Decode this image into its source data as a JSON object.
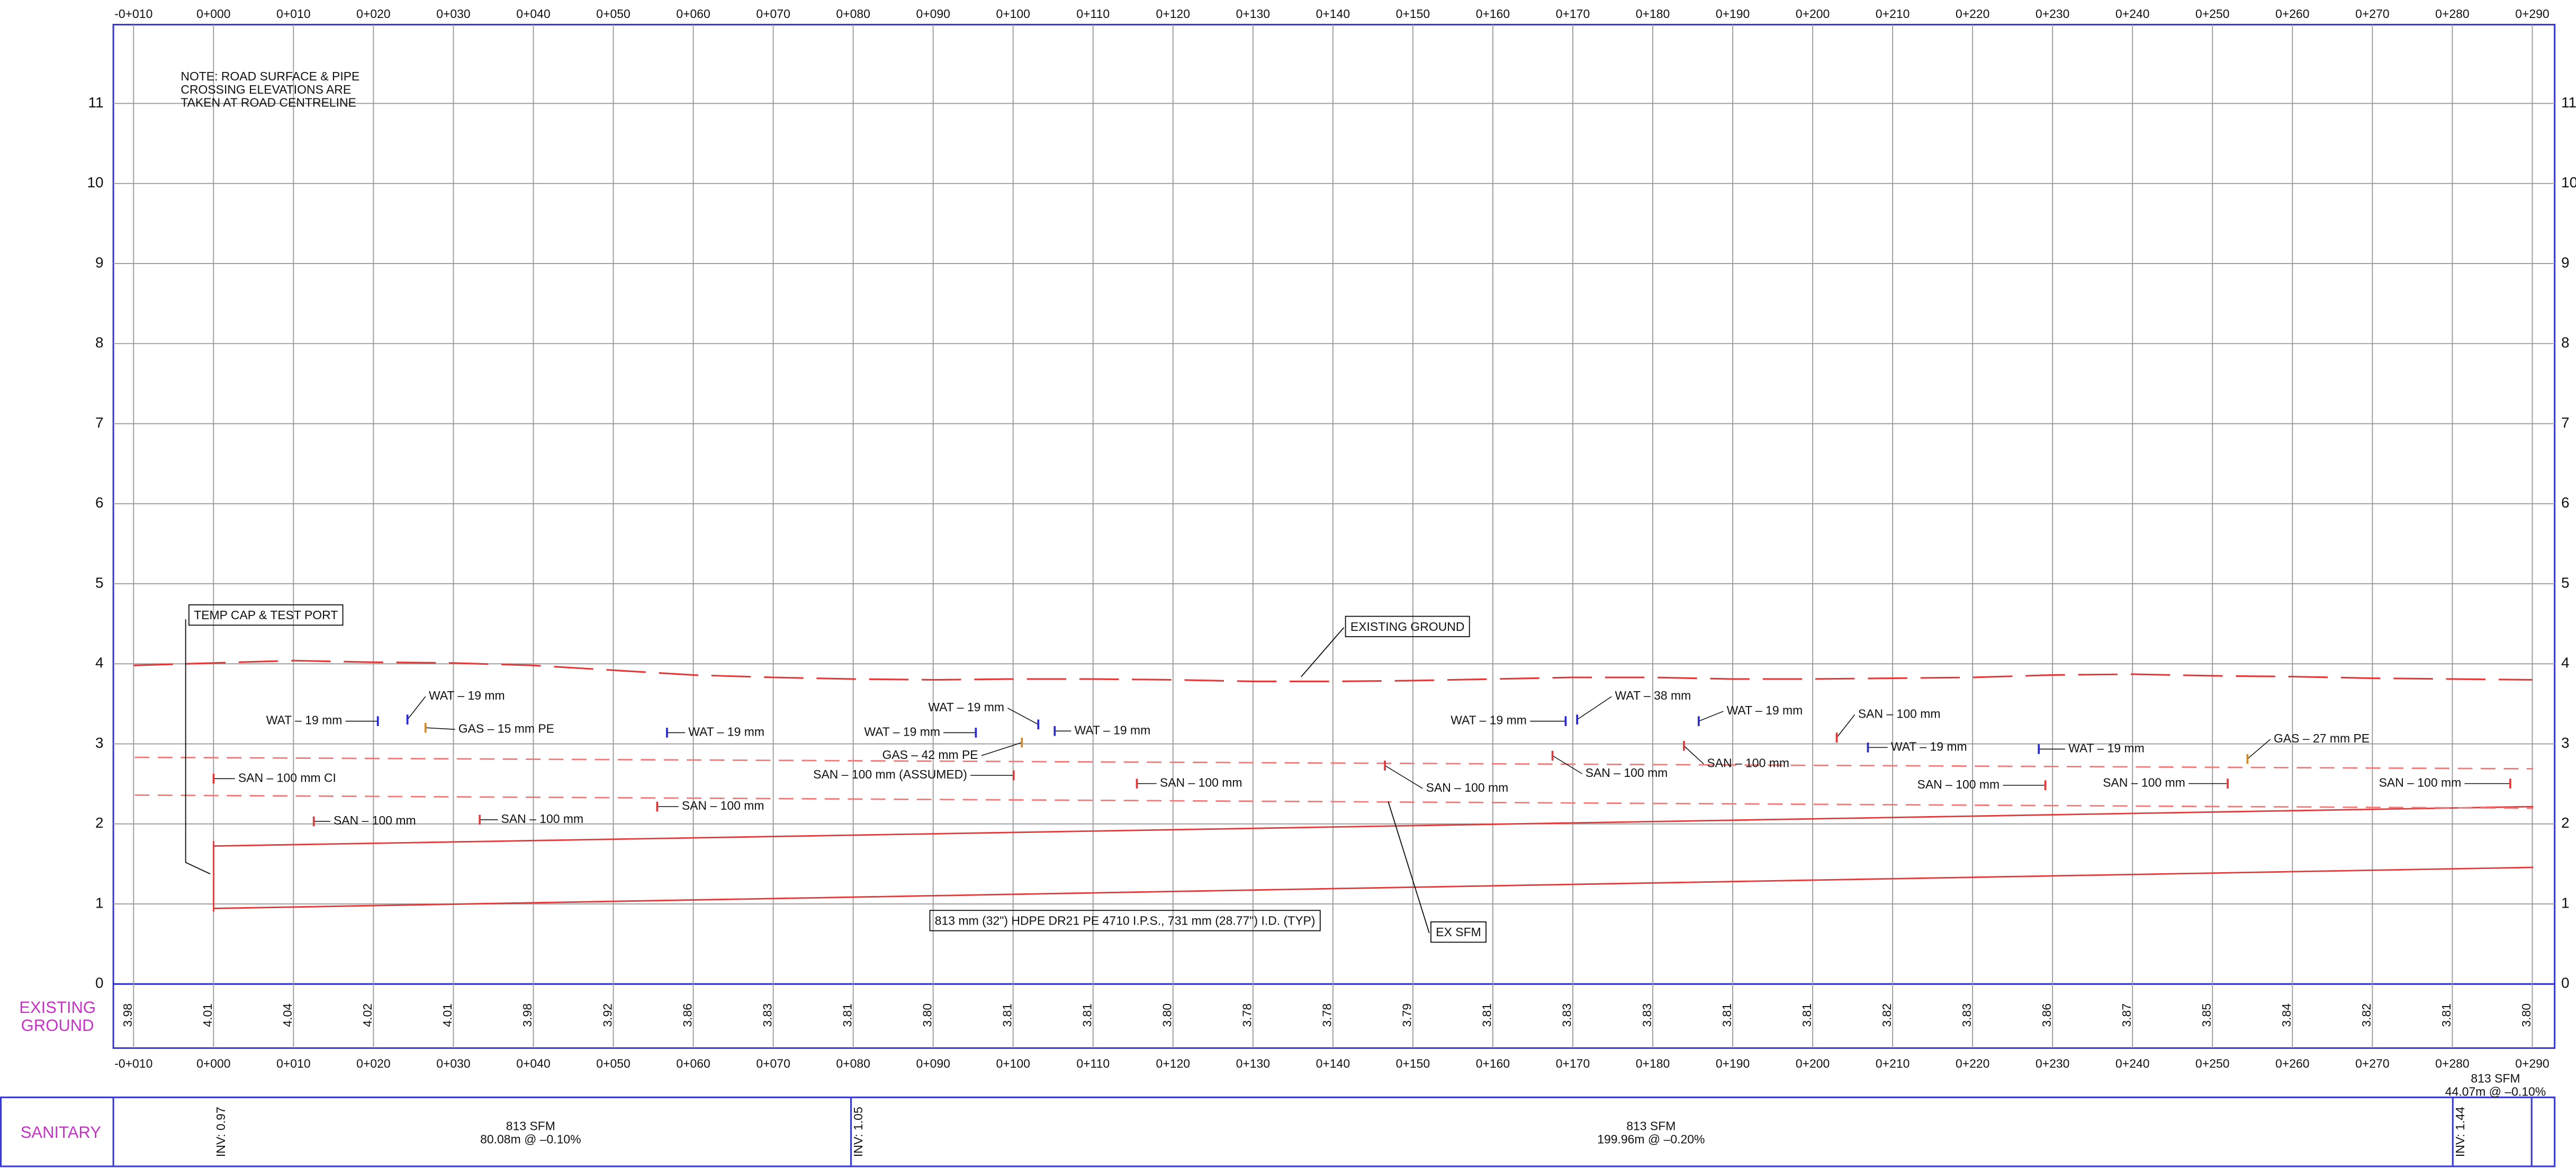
{
  "stations": [
    "-0+010",
    "0+000",
    "0+010",
    "0+020",
    "0+030",
    "0+040",
    "0+050",
    "0+060",
    "0+070",
    "0+080",
    "0+090",
    "0+100",
    "0+110",
    "0+120",
    "0+130",
    "0+140",
    "0+150",
    "0+160",
    "0+170",
    "0+180",
    "0+190",
    "0+200",
    "0+210",
    "0+220",
    "0+230",
    "0+240",
    "0+250",
    "0+260",
    "0+270",
    "0+280",
    "0+290"
  ],
  "elevations": [
    0,
    1,
    2,
    3,
    4,
    5,
    6,
    7,
    8,
    9,
    10,
    11
  ],
  "existing_ground": {
    "label_lines": [
      "EXISTING",
      "GROUND"
    ],
    "values": [
      3.98,
      4.01,
      4.04,
      4.02,
      4.01,
      3.98,
      3.92,
      3.86,
      3.83,
      3.81,
      3.8,
      3.81,
      3.81,
      3.8,
      3.78,
      3.78,
      3.79,
      3.81,
      3.83,
      3.83,
      3.81,
      3.81,
      3.82,
      3.83,
      3.86,
      3.87,
      3.85,
      3.84,
      3.82,
      3.81,
      3.8
    ],
    "value_labels": [
      "3.98",
      "4.01",
      "4.04",
      "4.02",
      "4.01",
      "3.98",
      "3.92",
      "3.86",
      "3.83",
      "3.81",
      "3.80",
      "3.81",
      "3.81",
      "3.80",
      "3.78",
      "3.78",
      "3.79",
      "3.81",
      "3.83",
      "3.83",
      "3.81",
      "3.81",
      "3.82",
      "3.83",
      "3.86",
      "3.87",
      "3.85",
      "3.84",
      "3.82",
      "3.81",
      "3.80"
    ]
  },
  "notes": [
    "NOTE: ROAD SURFACE & PIPE",
    "CROSSING ELEVATIONS ARE",
    "TAKEN AT ROAD CENTRELINE"
  ],
  "callouts": [
    "TEMP CAP & TEST PORT",
    "EXISTING GROUND",
    "813 mm (32\") HDPE DR21 PE 4710 I.P.S., 731 mm (28.77\") I.D. (TYP)",
    "EX SFM"
  ],
  "utilities": [
    "WAT – 19 mm",
    "WAT – 19 mm",
    "GAS – 15 mm PE",
    "SAN – 100 mm CI",
    "SAN – 100 mm",
    "SAN – 100 mm",
    "WAT – 19 mm",
    "SAN – 100 mm",
    "WAT – 19 mm",
    "WAT – 19 mm",
    "WAT – 19 mm",
    "GAS – 42 mm PE",
    "SAN – 100 mm (ASSUMED)",
    "SAN – 100 mm",
    "SAN – 100 mm",
    "WAT – 19 mm",
    "WAT – 38 mm",
    "SAN – 100 mm",
    "WAT – 19 mm",
    "SAN – 100 mm",
    "SAN – 100 mm",
    "WAT – 19 mm",
    "SAN – 100 mm",
    "WAT – 19 mm",
    "SAN – 100 mm",
    "GAS – 27 mm PE",
    "SAN – 100 mm"
  ],
  "end_segment": {
    "name": "813 SFM",
    "detail": "44.07m @ –0.10%"
  },
  "sanitary": {
    "label": "SANITARY",
    "segments": [
      {
        "inv": "INV: 0.97",
        "name": "813 SFM",
        "detail": "80.08m @ –0.10%"
      },
      {
        "inv": "INV: 1.05",
        "name": "813 SFM",
        "detail": "199.96m @ –0.20%"
      },
      {
        "inv": "INV: 1.44"
      }
    ]
  }
}
